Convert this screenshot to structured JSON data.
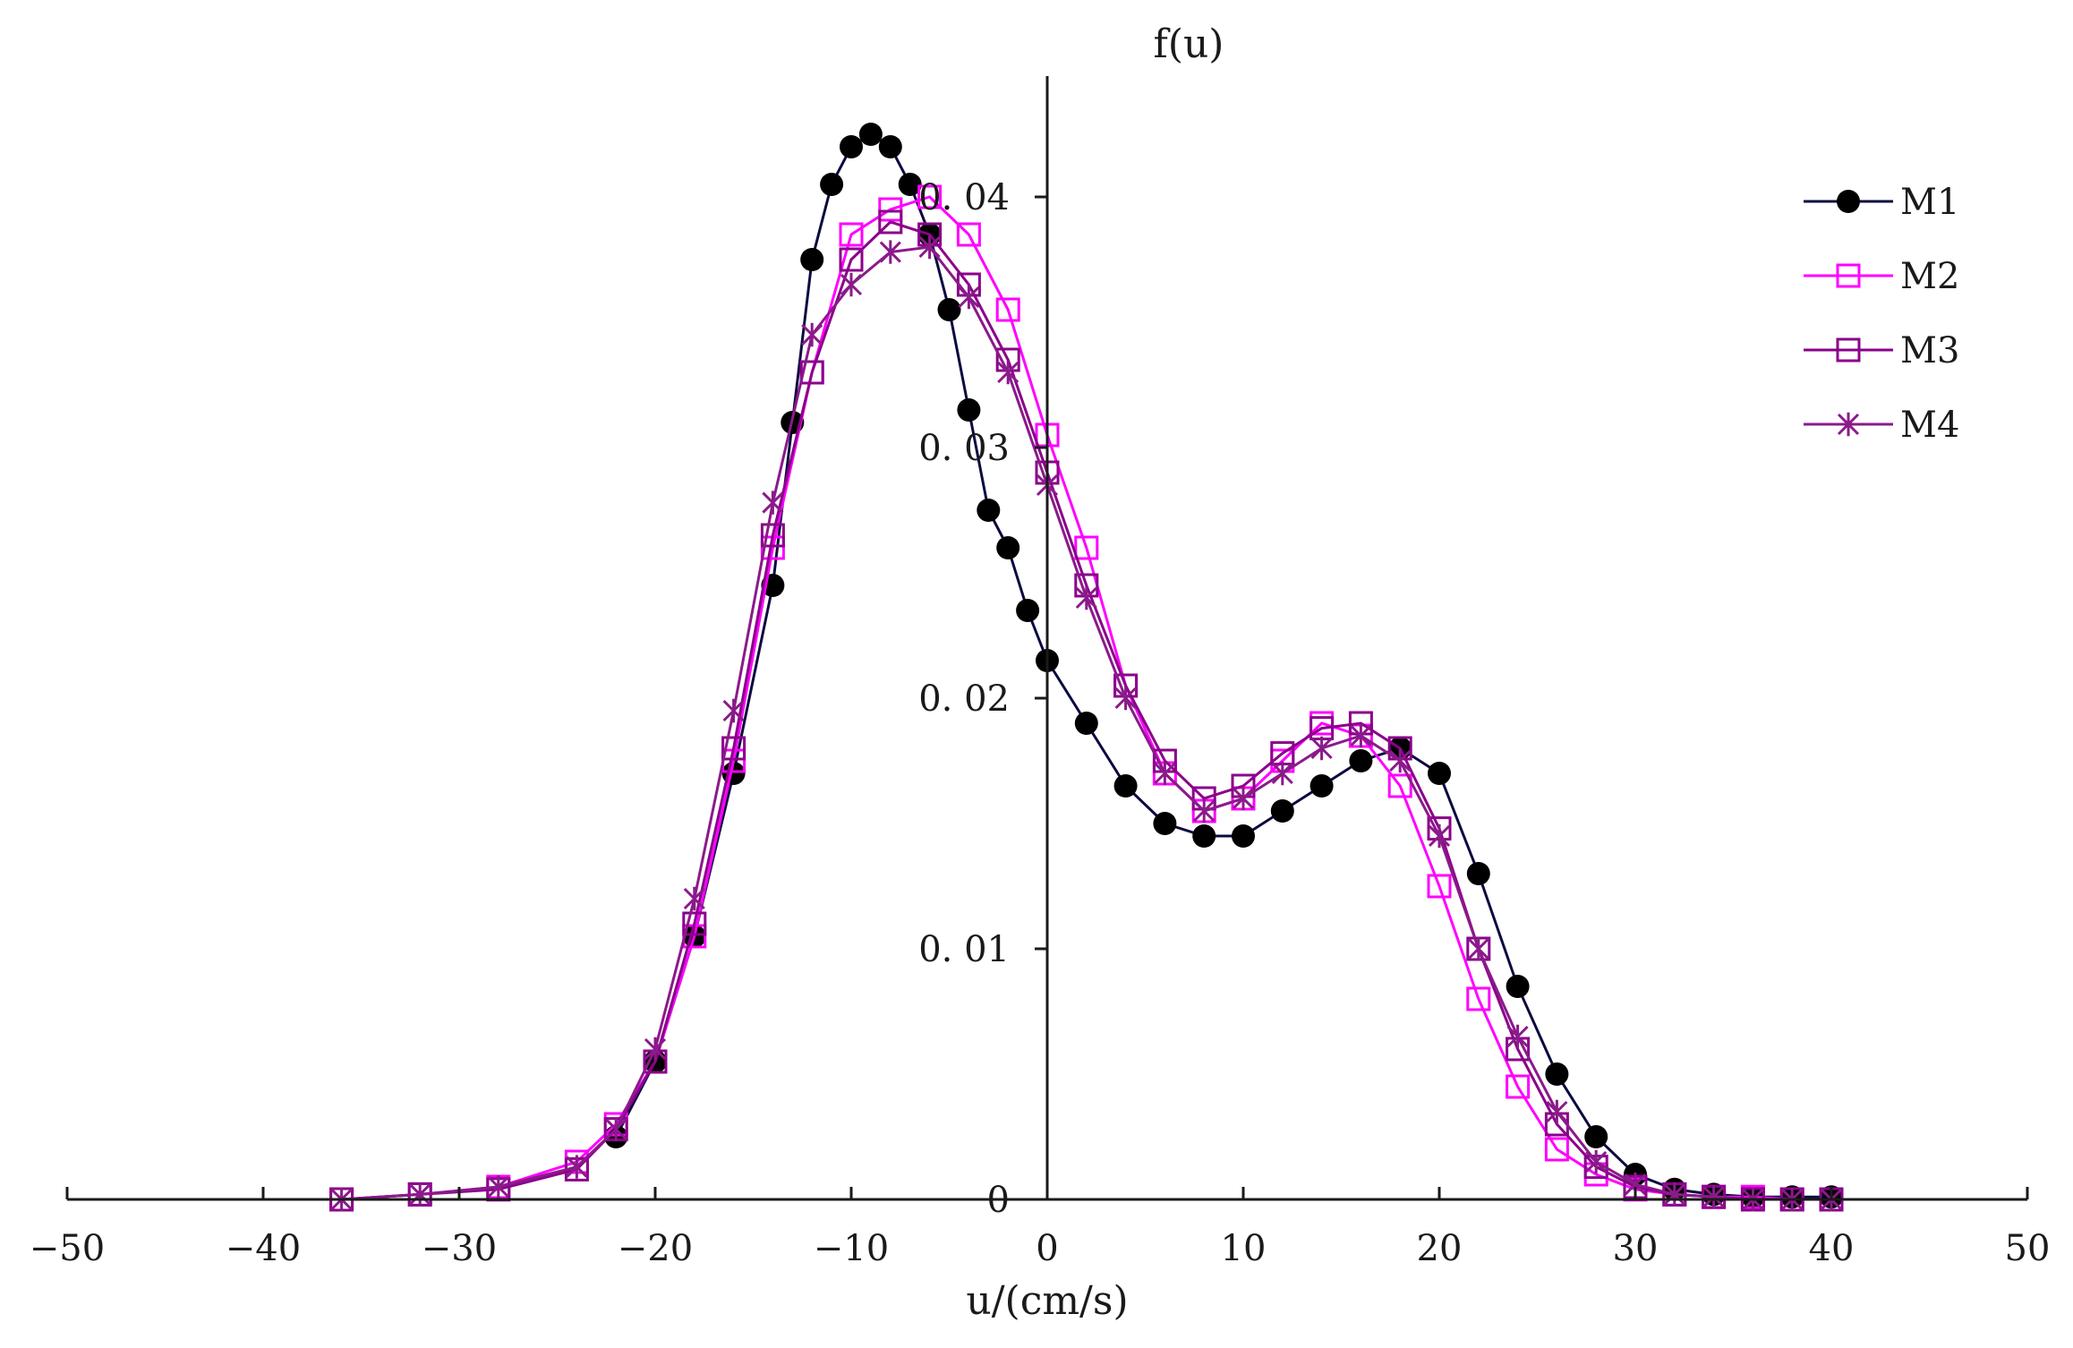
{
  "chart_data": {
    "type": "line",
    "title": "",
    "xlabel": "u/(cm/s)",
    "ylabel": "f(u)",
    "xlim": [
      -50,
      50
    ],
    "ylim": [
      0,
      0.045
    ],
    "x_ticks": [
      {
        "value": -50,
        "label": "-50"
      },
      {
        "value": -40,
        "label": "-40"
      },
      {
        "value": -30,
        "label": "-30"
      },
      {
        "value": -20,
        "label": "-20"
      },
      {
        "value": -10,
        "label": "-10"
      },
      {
        "value": 0,
        "label": "0"
      },
      {
        "value": 10,
        "label": "10"
      },
      {
        "value": 20,
        "label": "20"
      },
      {
        "value": 30,
        "label": "30"
      },
      {
        "value": 40,
        "label": "40"
      },
      {
        "value": 50,
        "label": "50"
      }
    ],
    "y_ticks": [
      {
        "value": 0,
        "label": "0"
      },
      {
        "value": 0.01,
        "label": "0. 01"
      },
      {
        "value": 0.02,
        "label": "0. 02"
      },
      {
        "value": 0.03,
        "label": "0. 03"
      },
      {
        "value": 0.04,
        "label": "0. 04"
      }
    ],
    "grid": false,
    "legend_position": "top-right",
    "series": [
      {
        "name": "M1",
        "color": "#0b0b40",
        "marker": "filled-circle",
        "marker_color": "#000000",
        "x": [
          -22,
          -20,
          -18,
          -16,
          -14,
          -13,
          -12,
          -11,
          -10,
          -9,
          -8,
          -7,
          -6,
          -5,
          -4,
          -3,
          -2,
          -1,
          0,
          2,
          4,
          6,
          8,
          10,
          12,
          14,
          16,
          18,
          20,
          22,
          24,
          26,
          28,
          30,
          32,
          34,
          36,
          38,
          40
        ],
        "y": [
          0.0025,
          0.0055,
          0.0105,
          0.017,
          0.0245,
          0.031,
          0.0375,
          0.0405,
          0.042,
          0.0425,
          0.042,
          0.0405,
          0.0385,
          0.0355,
          0.0315,
          0.0275,
          0.026,
          0.0235,
          0.0215,
          0.019,
          0.0165,
          0.015,
          0.0145,
          0.0145,
          0.0155,
          0.0165,
          0.0175,
          0.018,
          0.017,
          0.013,
          0.0085,
          0.005,
          0.0025,
          0.001,
          0.0004,
          0.0002,
          0.0001,
          0.0001,
          0.0001
        ]
      },
      {
        "name": "M2",
        "color": "#ff00ff",
        "marker": "open-square",
        "marker_color": "#ff00ff",
        "x": [
          -36,
          -32,
          -28,
          -24,
          -22,
          -20,
          -18,
          -16,
          -14,
          -12,
          -10,
          -8,
          -6,
          -4,
          -2,
          0,
          2,
          4,
          6,
          8,
          10,
          12,
          14,
          16,
          18,
          20,
          22,
          24,
          26,
          28,
          30,
          32,
          34,
          36,
          38,
          40
        ],
        "y": [
          0,
          0.0002,
          0.0005,
          0.0015,
          0.003,
          0.0055,
          0.0105,
          0.0175,
          0.026,
          0.033,
          0.0385,
          0.0395,
          0.04,
          0.0385,
          0.0355,
          0.0305,
          0.026,
          0.0205,
          0.017,
          0.0155,
          0.016,
          0.0175,
          0.019,
          0.0185,
          0.0165,
          0.0125,
          0.008,
          0.0045,
          0.002,
          0.001,
          0.0004,
          0.0002,
          0.0001,
          0.0001,
          0,
          0
        ]
      },
      {
        "name": "M3",
        "color": "#8b008b",
        "marker": "open-square",
        "marker_color": "#8b008b",
        "x": [
          -36,
          -32,
          -28,
          -24,
          -22,
          -20,
          -18,
          -16,
          -14,
          -12,
          -10,
          -8,
          -6,
          -4,
          -2,
          0,
          2,
          4,
          6,
          8,
          10,
          12,
          14,
          16,
          18,
          20,
          22,
          24,
          26,
          28,
          30,
          32,
          34,
          36,
          38,
          40
        ],
        "y": [
          0,
          0.0002,
          0.0004,
          0.0012,
          0.0028,
          0.0055,
          0.011,
          0.018,
          0.0265,
          0.033,
          0.0375,
          0.039,
          0.0385,
          0.0365,
          0.0335,
          0.029,
          0.0245,
          0.0205,
          0.0175,
          0.016,
          0.0165,
          0.0178,
          0.0188,
          0.019,
          0.018,
          0.0148,
          0.01,
          0.006,
          0.003,
          0.0013,
          0.0005,
          0.0002,
          0.0001,
          0,
          0,
          0
        ]
      },
      {
        "name": "M4",
        "color": "#8b1a8b",
        "marker": "star",
        "marker_color": "#8b1a8b",
        "x": [
          -36,
          -32,
          -28,
          -24,
          -22,
          -20,
          -18,
          -16,
          -14,
          -12,
          -10,
          -8,
          -6,
          -4,
          -2,
          0,
          2,
          4,
          6,
          8,
          10,
          12,
          14,
          16,
          18,
          20,
          22,
          24,
          26,
          28,
          30,
          32,
          34,
          36,
          38,
          40
        ],
        "y": [
          0,
          0.0002,
          0.0005,
          0.0013,
          0.0028,
          0.006,
          0.012,
          0.0195,
          0.0278,
          0.0345,
          0.0365,
          0.0378,
          0.038,
          0.036,
          0.033,
          0.0285,
          0.024,
          0.02,
          0.017,
          0.0155,
          0.016,
          0.017,
          0.018,
          0.0185,
          0.0175,
          0.0145,
          0.01,
          0.0065,
          0.0035,
          0.0015,
          0.0006,
          0.0002,
          0.0001,
          0,
          0,
          0
        ]
      }
    ]
  }
}
